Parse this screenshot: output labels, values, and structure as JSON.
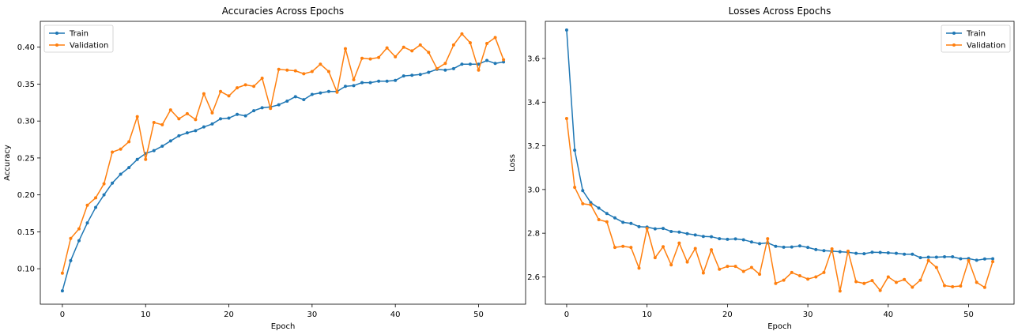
{
  "chart_data": [
    {
      "type": "line",
      "title": "Accuracies Across Epochs",
      "xlabel": "Epoch",
      "ylabel": "Accuracy",
      "xlim": [
        -2.65,
        55.65
      ],
      "ylim": [
        0.052,
        0.435
      ],
      "xticks": [
        0,
        10,
        20,
        30,
        40,
        50
      ],
      "yticks": [
        0.1,
        0.15,
        0.2,
        0.25,
        0.3,
        0.35,
        0.4
      ],
      "ytick_labels": [
        "0.10",
        "0.15",
        "0.20",
        "0.25",
        "0.30",
        "0.35",
        "0.40"
      ],
      "legend": "top-left",
      "grid": false,
      "series": [
        {
          "name": "Train",
          "color": "#1f77b4",
          "values": [
            0.07,
            0.111,
            0.138,
            0.162,
            0.183,
            0.2,
            0.216,
            0.228,
            0.237,
            0.248,
            0.256,
            0.26,
            0.266,
            0.273,
            0.28,
            0.284,
            0.287,
            0.292,
            0.296,
            0.303,
            0.304,
            0.309,
            0.307,
            0.314,
            0.318,
            0.319,
            0.322,
            0.327,
            0.333,
            0.329,
            0.336,
            0.338,
            0.34,
            0.34,
            0.347,
            0.348,
            0.352,
            0.352,
            0.354,
            0.354,
            0.355,
            0.361,
            0.362,
            0.363,
            0.366,
            0.37,
            0.369,
            0.371,
            0.377,
            0.377,
            0.377,
            0.382,
            0.378,
            0.38
          ]
        },
        {
          "name": "Validation",
          "color": "#ff7f0e",
          "values": [
            0.094,
            0.141,
            0.154,
            0.186,
            0.196,
            0.215,
            0.258,
            0.262,
            0.272,
            0.306,
            0.248,
            0.298,
            0.295,
            0.315,
            0.303,
            0.31,
            0.302,
            0.337,
            0.311,
            0.34,
            0.334,
            0.345,
            0.349,
            0.347,
            0.358,
            0.317,
            0.37,
            0.369,
            0.368,
            0.364,
            0.367,
            0.377,
            0.367,
            0.339,
            0.398,
            0.356,
            0.385,
            0.384,
            0.386,
            0.399,
            0.387,
            0.4,
            0.395,
            0.403,
            0.393,
            0.371,
            0.378,
            0.403,
            0.418,
            0.406,
            0.369,
            0.405,
            0.413,
            0.383
          ]
        }
      ]
    },
    {
      "type": "line",
      "title": "Losses Across Epochs",
      "xlabel": "Epoch",
      "ylabel": "Loss",
      "xlim": [
        -2.65,
        55.65
      ],
      "ylim": [
        2.475,
        3.77
      ],
      "xticks": [
        0,
        10,
        20,
        30,
        40,
        50
      ],
      "yticks": [
        2.6,
        2.8,
        3.0,
        3.2,
        3.4,
        3.6
      ],
      "ytick_labels": [
        "2.6",
        "2.8",
        "3.0",
        "3.2",
        "3.4",
        "3.6"
      ],
      "legend": "top-right",
      "grid": false,
      "series": [
        {
          "name": "Train",
          "color": "#1f77b4",
          "values": [
            3.73,
            3.18,
            2.995,
            2.94,
            2.915,
            2.89,
            2.87,
            2.85,
            2.845,
            2.83,
            2.828,
            2.82,
            2.822,
            2.808,
            2.805,
            2.798,
            2.792,
            2.785,
            2.784,
            2.775,
            2.772,
            2.774,
            2.77,
            2.76,
            2.752,
            2.756,
            2.74,
            2.736,
            2.737,
            2.742,
            2.735,
            2.725,
            2.72,
            2.718,
            2.715,
            2.713,
            2.708,
            2.706,
            2.713,
            2.712,
            2.71,
            2.708,
            2.704,
            2.704,
            2.688,
            2.69,
            2.69,
            2.692,
            2.692,
            2.683,
            2.684,
            2.676,
            2.682,
            2.683
          ]
        },
        {
          "name": "Validation",
          "color": "#ff7f0e",
          "values": [
            3.325,
            3.01,
            2.935,
            2.93,
            2.862,
            2.852,
            2.735,
            2.74,
            2.735,
            2.64,
            2.822,
            2.688,
            2.738,
            2.655,
            2.755,
            2.668,
            2.73,
            2.618,
            2.724,
            2.635,
            2.648,
            2.648,
            2.625,
            2.643,
            2.612,
            2.775,
            2.57,
            2.585,
            2.62,
            2.605,
            2.59,
            2.6,
            2.62,
            2.728,
            2.535,
            2.718,
            2.578,
            2.57,
            2.583,
            2.538,
            2.6,
            2.575,
            2.588,
            2.553,
            2.585,
            2.675,
            2.643,
            2.56,
            2.555,
            2.558,
            2.675,
            2.575,
            2.552,
            2.67
          ]
        }
      ]
    }
  ]
}
